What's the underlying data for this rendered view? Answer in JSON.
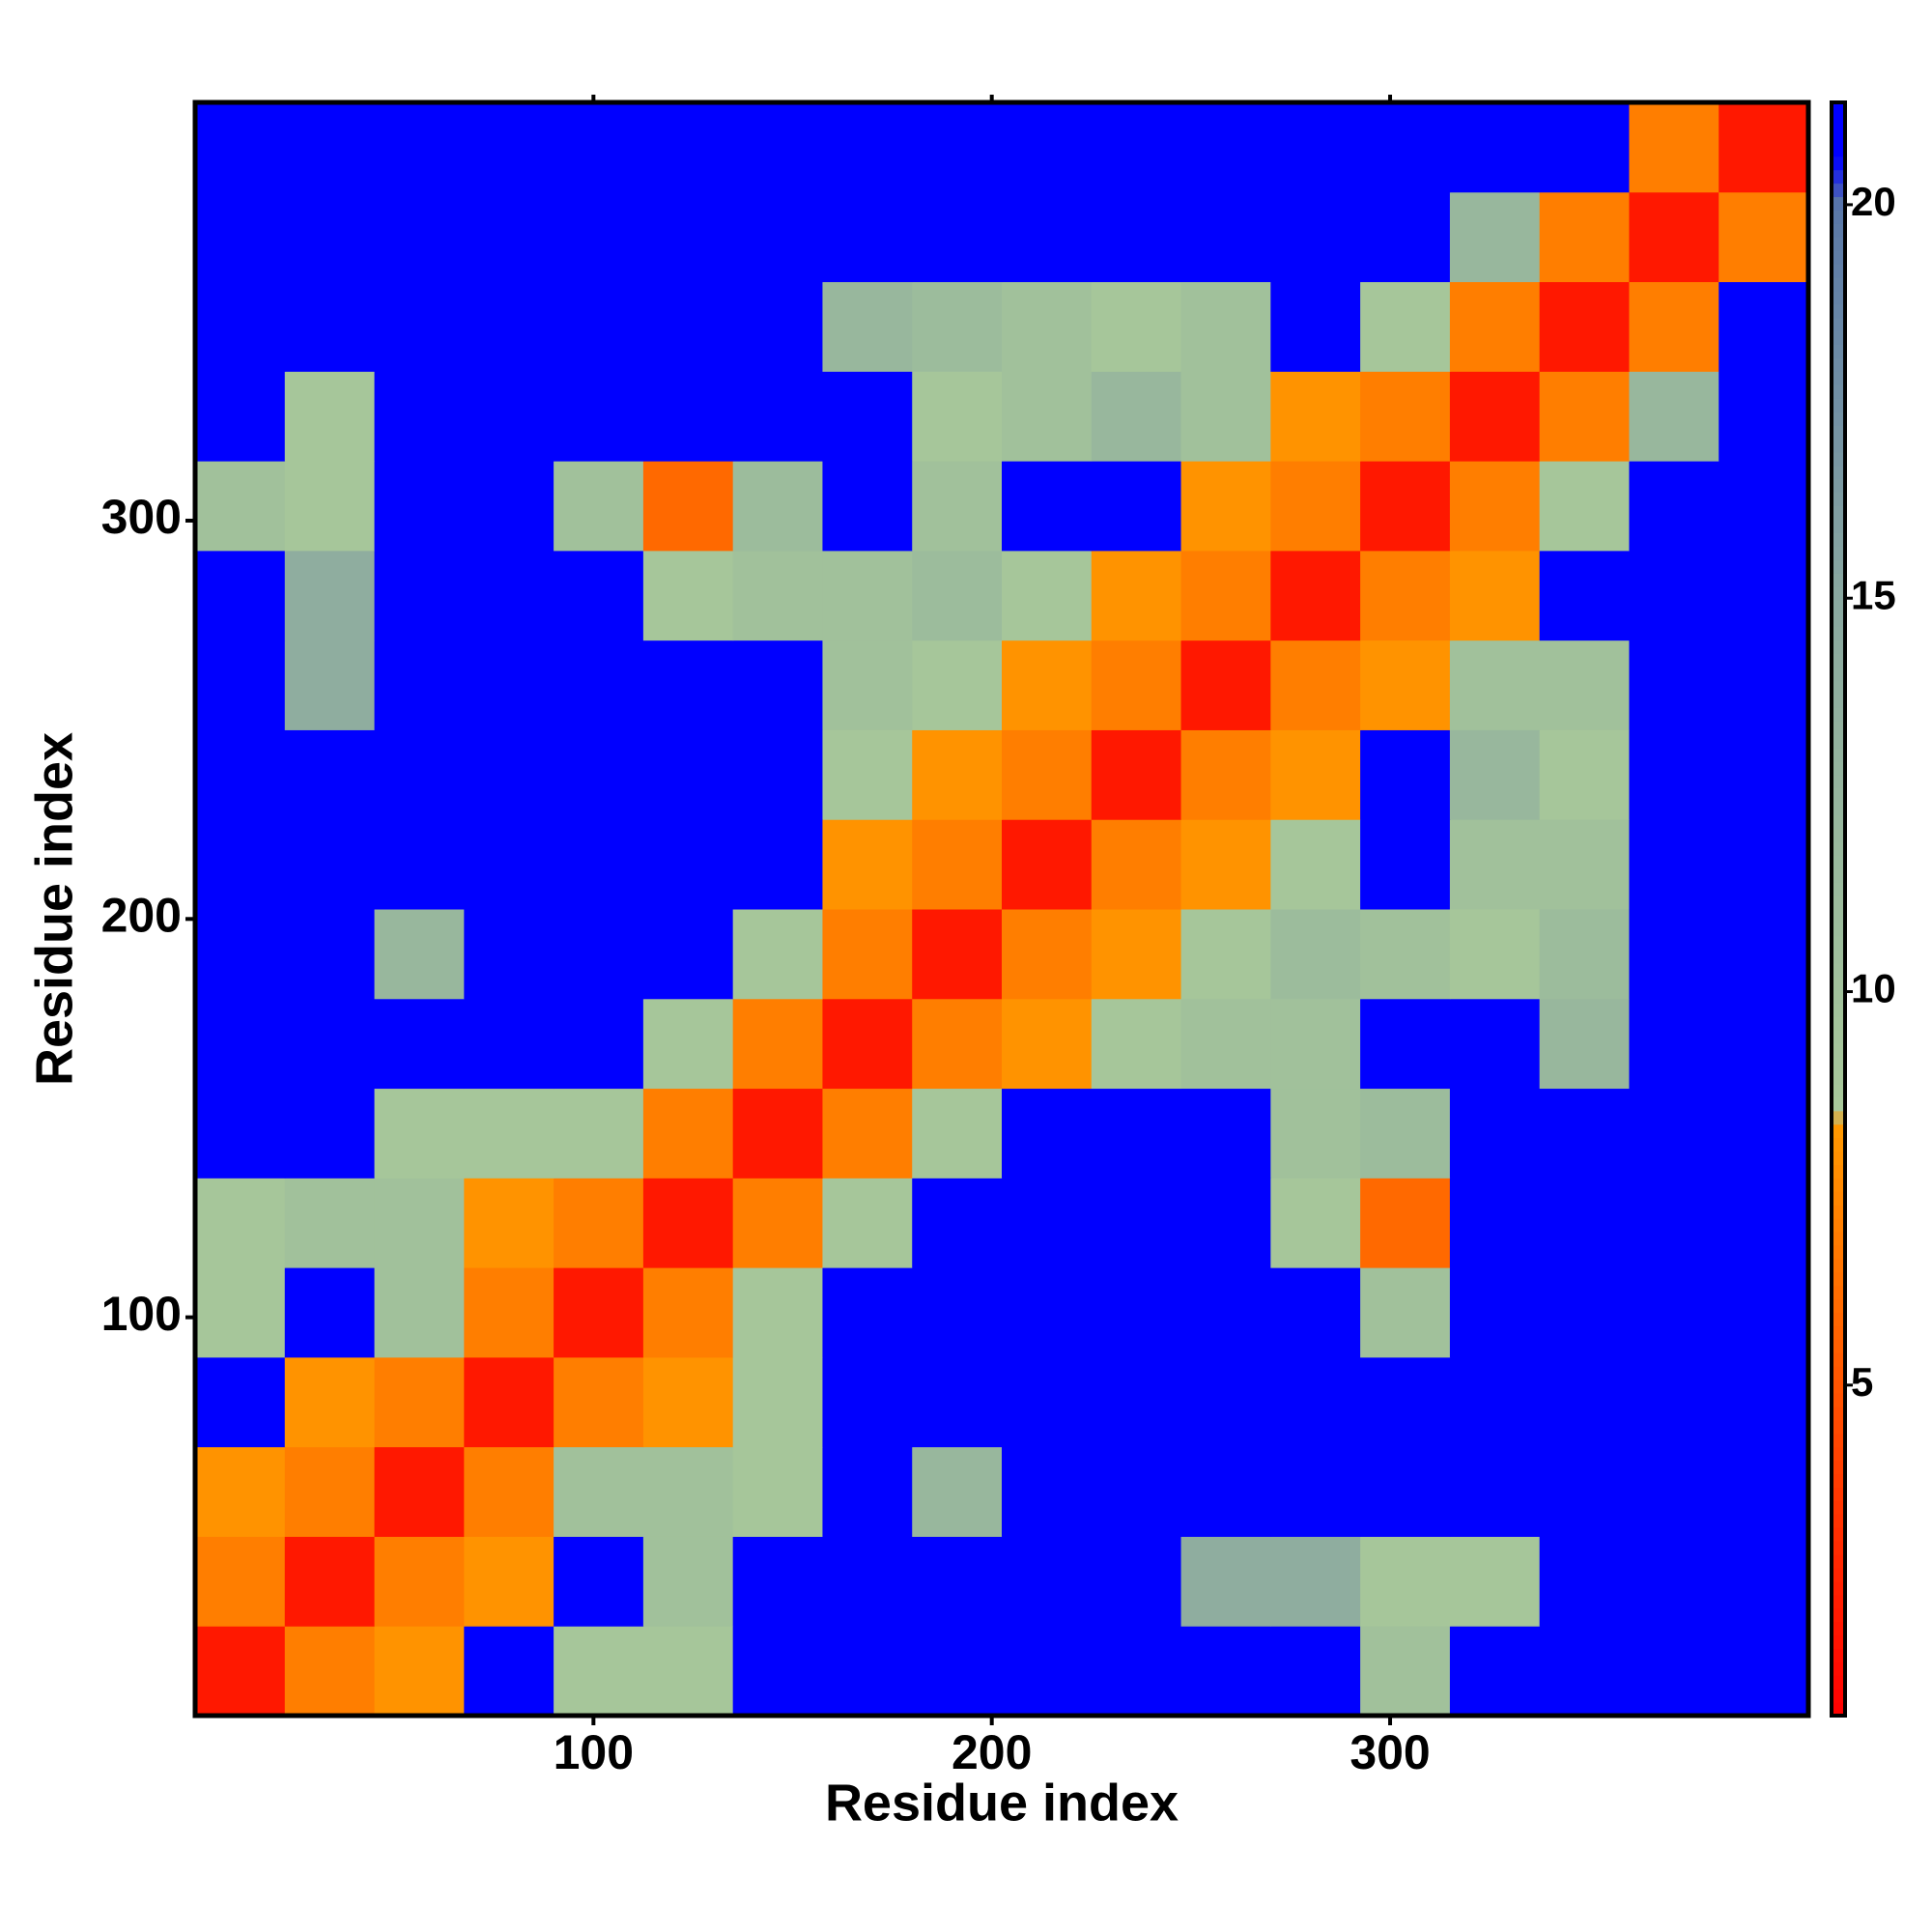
{
  "chart_data": {
    "type": "heatmap",
    "xlabel": "Residue index",
    "ylabel": "Residue index",
    "xlim": [
      0,
      405
    ],
    "ylim": [
      0,
      405
    ],
    "xticks": [
      100,
      200,
      300
    ],
    "yticks": [
      100,
      200,
      300
    ],
    "xbins": [
      0,
      22.5,
      45,
      67.5,
      90,
      112.5,
      135,
      157.5,
      180,
      202.5,
      225,
      247.5,
      270,
      292.5,
      315,
      337.5,
      360,
      382.5,
      405
    ],
    "ybins": [
      0,
      22.5,
      45,
      67.5,
      90,
      112.5,
      135,
      157.5,
      180,
      202.5,
      225,
      247.5,
      270,
      292.5,
      315,
      337.5,
      360,
      382.5,
      405
    ],
    "values": [
      [
        2,
        7,
        8,
        21,
        9,
        9,
        21,
        21,
        21,
        21,
        21,
        21,
        21,
        10,
        21,
        21,
        21,
        21
      ],
      [
        7,
        2,
        7,
        8,
        21,
        10,
        21,
        21,
        21,
        21,
        21,
        14,
        14,
        9,
        9,
        21,
        21,
        21
      ],
      [
        8,
        7,
        2,
        7,
        10,
        10,
        9,
        21,
        12,
        21,
        21,
        21,
        21,
        21,
        21,
        21,
        21,
        21
      ],
      [
        21,
        8,
        7,
        2,
        7,
        8,
        9,
        21,
        21,
        21,
        21,
        21,
        21,
        21,
        21,
        21,
        21,
        21
      ],
      [
        9,
        21,
        10,
        7,
        2,
        7,
        9,
        21,
        21,
        21,
        21,
        21,
        21,
        10,
        21,
        21,
        21,
        21
      ],
      [
        9,
        10,
        10,
        8,
        7,
        2,
        7,
        9,
        21,
        21,
        21,
        21,
        9,
        6,
        21,
        21,
        21,
        21
      ],
      [
        21,
        21,
        9,
        9,
        9,
        7,
        2,
        7,
        9,
        21,
        21,
        21,
        10,
        11,
        21,
        21,
        21,
        21
      ],
      [
        21,
        21,
        21,
        21,
        21,
        9,
        7,
        2,
        7,
        8,
        9,
        10,
        10,
        21,
        21,
        12,
        21,
        21
      ],
      [
        21,
        21,
        12,
        21,
        21,
        21,
        9,
        7,
        2,
        7,
        8,
        9,
        11,
        10,
        9,
        11,
        21,
        21
      ],
      [
        21,
        21,
        21,
        21,
        21,
        21,
        21,
        8,
        7,
        2,
        7,
        8,
        9,
        21,
        10,
        10,
        21,
        21
      ],
      [
        21,
        21,
        21,
        21,
        21,
        21,
        21,
        9,
        8,
        7,
        2,
        7,
        8,
        21,
        12,
        9,
        21,
        21
      ],
      [
        21,
        14,
        21,
        21,
        21,
        21,
        21,
        10,
        9,
        8,
        7,
        2,
        7,
        8,
        10,
        10,
        21,
        21
      ],
      [
        21,
        14,
        21,
        21,
        21,
        9,
        10,
        10,
        11,
        9,
        8,
        7,
        2,
        7,
        8,
        21,
        21,
        21
      ],
      [
        10,
        9,
        21,
        21,
        10,
        6,
        11,
        21,
        10,
        21,
        21,
        8,
        7,
        2,
        7,
        9,
        21,
        21
      ],
      [
        21,
        9,
        21,
        21,
        21,
        21,
        21,
        21,
        9,
        10,
        12,
        10,
        8,
        7,
        2,
        7,
        12,
        21
      ],
      [
        21,
        21,
        21,
        21,
        21,
        21,
        21,
        12,
        11,
        10,
        9,
        10,
        21,
        9,
        7,
        2,
        7,
        21
      ],
      [
        21,
        21,
        21,
        21,
        21,
        21,
        21,
        21,
        21,
        21,
        21,
        21,
        21,
        21,
        12,
        7,
        2,
        7
      ],
      [
        21,
        21,
        21,
        21,
        21,
        21,
        21,
        21,
        21,
        21,
        21,
        21,
        21,
        21,
        21,
        21,
        7,
        2
      ]
    ],
    "clim": [
      0.8,
      21.3
    ],
    "cticks": [
      5,
      10,
      15,
      20
    ],
    "colorscale": [
      [
        0.8,
        "#ff0000"
      ],
      [
        4,
        "#ff4000"
      ],
      [
        8.3,
        "#ff9900"
      ],
      [
        8.5,
        "#a8c89a"
      ],
      [
        15,
        "#8aa8a0"
      ],
      [
        20,
        "#5a78a8"
      ],
      [
        20.6,
        "#0000ff"
      ],
      [
        21.3,
        "#0000ff"
      ]
    ]
  }
}
